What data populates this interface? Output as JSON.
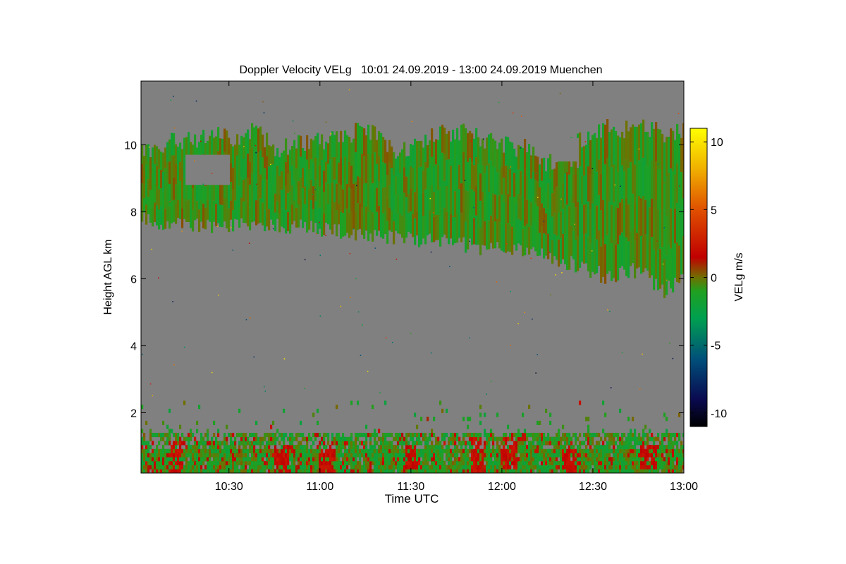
{
  "chart_data": {
    "type": "heatmap",
    "title": "Doppler Velocity VELg   10:01 24.09.2019 - 13:00 24.09.2019 Muenchen",
    "xlabel": "Time UTC",
    "ylabel": "Height AGL km",
    "x_range": [
      "10:01",
      "13:00"
    ],
    "xlim_minutes_utc": [
      601,
      780
    ],
    "ylim": [
      0.2,
      11.9
    ],
    "x_ticks": [
      {
        "label": "10:30",
        "minutes": 630
      },
      {
        "label": "11:00",
        "minutes": 660
      },
      {
        "label": "11:30",
        "minutes": 690
      },
      {
        "label": "12:00",
        "minutes": 720
      },
      {
        "label": "12:30",
        "minutes": 750
      },
      {
        "label": "13:00",
        "minutes": 780
      }
    ],
    "y_ticks": [
      {
        "label": "2",
        "value": 2
      },
      {
        "label": "4",
        "value": 4
      },
      {
        "label": "6",
        "value": 6
      },
      {
        "label": "8",
        "value": 8
      },
      {
        "label": "10",
        "value": 10
      }
    ],
    "colorbar": {
      "label": "VELg m/s",
      "range": [
        -11,
        11
      ],
      "ticks": [
        {
          "label": "10",
          "value": 10
        },
        {
          "label": "5",
          "value": 5
        },
        {
          "label": "0",
          "value": 0
        },
        {
          "label": "-5",
          "value": -5
        },
        {
          "label": "-10",
          "value": -10
        }
      ],
      "stops": [
        {
          "value": -11,
          "color": "#000000"
        },
        {
          "value": -9,
          "color": "#0a0a50"
        },
        {
          "value": -6,
          "color": "#00507a"
        },
        {
          "value": -3,
          "color": "#00a050"
        },
        {
          "value": -1,
          "color": "#20a020"
        },
        {
          "value": 0,
          "color": "#707000"
        },
        {
          "value": 1.5,
          "color": "#c00000"
        },
        {
          "value": 5,
          "color": "#e05000"
        },
        {
          "value": 8,
          "color": "#f0b000"
        },
        {
          "value": 11,
          "color": "#ffff00"
        }
      ]
    },
    "no_signal_color": "#808080",
    "cirrus_layer": {
      "mean_velocity": -1,
      "top_km": [
        {
          "minutes": 601,
          "value": 9.9
        },
        {
          "minutes": 605,
          "value": 9.7
        },
        {
          "minutes": 612,
          "value": 10.2
        },
        {
          "minutes": 618,
          "value": 10.1
        },
        {
          "minutes": 625,
          "value": 10.3
        },
        {
          "minutes": 632,
          "value": 10.1
        },
        {
          "minutes": 638,
          "value": 10.4
        },
        {
          "minutes": 645,
          "value": 9.9
        },
        {
          "minutes": 652,
          "value": 10.0
        },
        {
          "minutes": 660,
          "value": 10.1
        },
        {
          "minutes": 668,
          "value": 10.3
        },
        {
          "minutes": 675,
          "value": 10.5
        },
        {
          "minutes": 680,
          "value": 10.1
        },
        {
          "minutes": 685,
          "value": 9.7
        },
        {
          "minutes": 690,
          "value": 10.0
        },
        {
          "minutes": 697,
          "value": 10.3
        },
        {
          "minutes": 705,
          "value": 10.4
        },
        {
          "minutes": 712,
          "value": 10.2
        },
        {
          "minutes": 720,
          "value": 10.0
        },
        {
          "minutes": 728,
          "value": 9.9
        },
        {
          "minutes": 735,
          "value": 9.4
        },
        {
          "minutes": 742,
          "value": 10.0
        },
        {
          "minutes": 748,
          "value": 10.3
        },
        {
          "minutes": 755,
          "value": 10.5
        },
        {
          "minutes": 762,
          "value": 10.4
        },
        {
          "minutes": 770,
          "value": 10.5
        },
        {
          "minutes": 775,
          "value": 10.3
        },
        {
          "minutes": 780,
          "value": 10.4
        }
      ],
      "base_km": [
        {
          "minutes": 601,
          "value": 7.8
        },
        {
          "minutes": 610,
          "value": 7.6
        },
        {
          "minutes": 625,
          "value": 7.6
        },
        {
          "minutes": 640,
          "value": 7.6
        },
        {
          "minutes": 660,
          "value": 7.5
        },
        {
          "minutes": 680,
          "value": 7.3
        },
        {
          "minutes": 700,
          "value": 7.1
        },
        {
          "minutes": 715,
          "value": 6.9
        },
        {
          "minutes": 728,
          "value": 6.8
        },
        {
          "minutes": 738,
          "value": 6.6
        },
        {
          "minutes": 748,
          "value": 6.3
        },
        {
          "minutes": 755,
          "value": 6.0
        },
        {
          "minutes": 762,
          "value": 6.3
        },
        {
          "minutes": 768,
          "value": 6.1
        },
        {
          "minutes": 772,
          "value": 5.6
        },
        {
          "minutes": 776,
          "value": 5.8
        },
        {
          "minutes": 780,
          "value": 6.3
        }
      ],
      "gaps": [
        {
          "from_minutes": 615,
          "to_minutes": 630,
          "bottom_km": 8.8,
          "top_km": 9.7
        },
        {
          "from_minutes": 736,
          "to_minutes": 745,
          "bottom_km": 9.5,
          "top_km": 10.2
        }
      ]
    },
    "boundary_layer": {
      "mean_velocity": -1,
      "top_km": 1.3,
      "sparse_echo_top_km": 2.5,
      "updraft_patches": [
        {
          "minutes": 612,
          "bottom_km": 0.2,
          "top_km": 1.1
        },
        {
          "minutes": 647,
          "bottom_km": 0.2,
          "top_km": 1.0
        },
        {
          "minutes": 662,
          "bottom_km": 0.2,
          "top_km": 0.8
        },
        {
          "minutes": 690,
          "bottom_km": 0.3,
          "top_km": 1.0
        },
        {
          "minutes": 712,
          "bottom_km": 0.2,
          "top_km": 1.2
        },
        {
          "minutes": 722,
          "bottom_km": 0.3,
          "top_km": 1.2
        },
        {
          "minutes": 742,
          "bottom_km": 0.2,
          "top_km": 0.9
        },
        {
          "minutes": 768,
          "bottom_km": 0.3,
          "top_km": 1.0
        }
      ]
    }
  }
}
